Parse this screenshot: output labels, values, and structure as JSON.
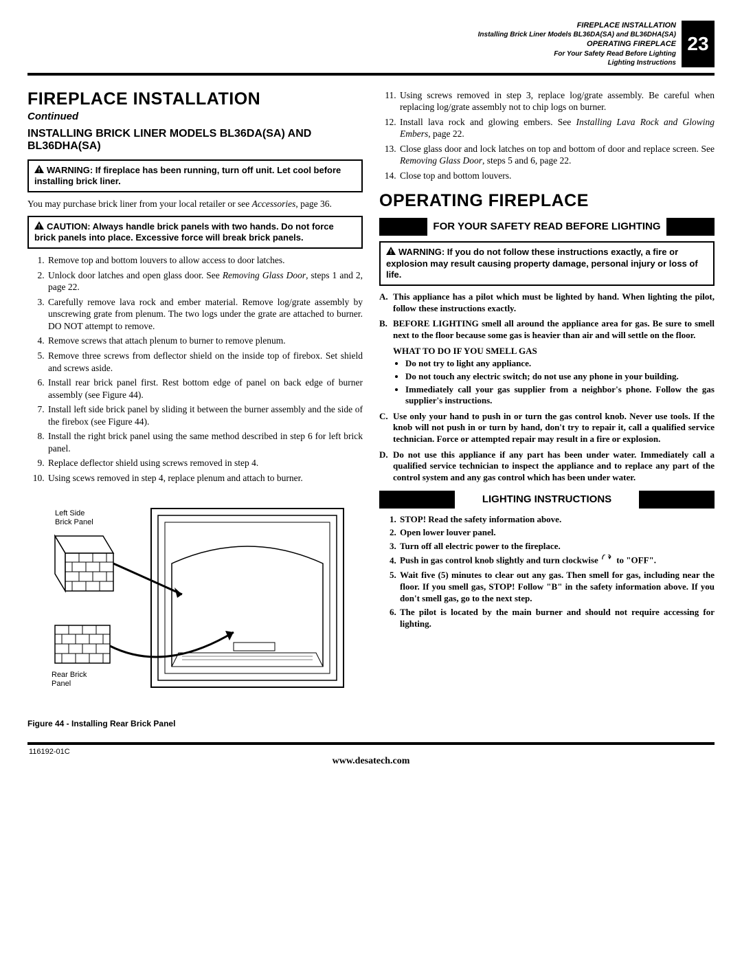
{
  "page_number": "23",
  "header": {
    "line1": "FIREPLACE INSTALLATION",
    "line2": "Installing Brick Liner Models BL36DA(SA) and BL36DHA(SA)",
    "line3": "OPERATING FIREPLACE",
    "line4": "For Your Safety Read Before Lighting",
    "line5": "Lighting Instructions"
  },
  "left": {
    "h1": "FIREPLACE INSTALLATION",
    "continued": "Continued",
    "h2": "INSTALLING BRICK LINER MODELS BL36DA(SA) AND BL36DHA(SA)",
    "warning_box": "WARNING: If fireplace has been running, turn off unit. Let cool before installing brick liner.",
    "body1_a": "You may purchase brick liner from your local retailer or see ",
    "body1_ital": "Accessories",
    "body1_b": ", page 36.",
    "caution_box": "CAUTION: Always handle brick panels with two hands. Do not force brick panels into place. Excessive force will break brick panels.",
    "steps": [
      "Remove top and bottom louvers to allow access to door latches.",
      "Unlock door latches and open glass door. See <i>Removing Glass Door</i>, steps 1 and 2, page 22.",
      "Carefully remove lava rock and ember material. Remove log/grate assembly by unscrewing grate from plenum. The two logs under the grate are attached to burner. DO NOT attempt to remove.",
      "Remove screws that attach plenum to burner to remove plenum.",
      "Remove three screws from deflector shield on the inside top of firebox. Set shield and screws aside.",
      "Install rear brick panel first. Rest bottom edge of panel on back edge of burner assembly (see Figure 44).",
      "Install left side brick panel by sliding it between the burner assembly and the side of the firebox (see Figure 44).",
      "Install the right brick panel using the same method described in step 6 for left brick panel.",
      "Replace deflector shield using screws removed in step 4.",
      "Using scews removed in step 4, replace plenum and attach to burner."
    ],
    "figure": {
      "label_left_side": "Left Side Brick Panel",
      "label_rear": "Rear Brick Panel",
      "caption": "Figure 44 - Installing Rear Brick Panel"
    }
  },
  "right": {
    "steps_cont": [
      "Using screws removed in step 3, replace log/grate assembly. Be careful when replacing log/grate assembly not to chip logs on burner.",
      "Install lava rock and glowing embers. See <i>Installing Lava Rock and Glowing Embers</i>, page 22.",
      "Close glass door and lock latches on top and bottom of door and replace screen. See <i>Removing Glass Door</i>, steps 5 and 6, page 22.",
      "Close top and bottom louvers."
    ],
    "h1": "OPERATING FIREPLACE",
    "banner1": "FOR YOUR SAFETY READ BEFORE LIGHTING",
    "warning_box": "WARNING: If you do not follow these instructions exactly, a fire or explosion may result causing property damage, personal injury or loss of life.",
    "safety": {
      "A": "This appliance has a pilot which must be lighted by hand. When lighting the pilot, follow these instructions exactly.",
      "B": "BEFORE LIGHTING smell all around the appliance area for gas. Be sure to smell next to the floor because some gas is heavier than air and will settle on the floor.",
      "B_sub_title": "WHAT TO DO IF YOU SMELL GAS",
      "B_bullets": [
        "Do not try to light any appliance.",
        "Do not touch any electric switch; do not use any phone in your building.",
        "Immediately call your gas supplier from a neighbor's phone. Follow the gas supplier's instructions."
      ],
      "C": "Use only your hand to push in or turn the gas control knob. Never use tools. If the knob will not push in or turn by hand, don't try to repair it, call a qualified service technician. Force or attempted repair may result in a fire or explosion.",
      "D": "Do not use this appliance if any part has been under water. Immediately call a qualified service technician to inspect the appliance and to replace any part of the control system and any gas control which has been under water."
    },
    "banner2": "LIGHTING INSTRUCTIONS",
    "lighting_steps": [
      "STOP! Read the safety information above.",
      "Open lower louver panel.",
      "Turn off all electric power to the fireplace.",
      "Push in gas control knob slightly and turn clockwise {CW} to \"OFF\".",
      "Wait five (5) minutes to clear out any gas. Then smell for gas, including near the floor. If you smell gas, STOP! Follow \"B\" in the safety information above. If you don't smell gas, go to the next step.",
      "The pilot is located by the main burner and should not require accessing for lighting."
    ]
  },
  "footer": {
    "left": "116192-01C",
    "center": "www.desatech.com"
  },
  "colors": {
    "ink": "#000000",
    "paper": "#ffffff"
  }
}
